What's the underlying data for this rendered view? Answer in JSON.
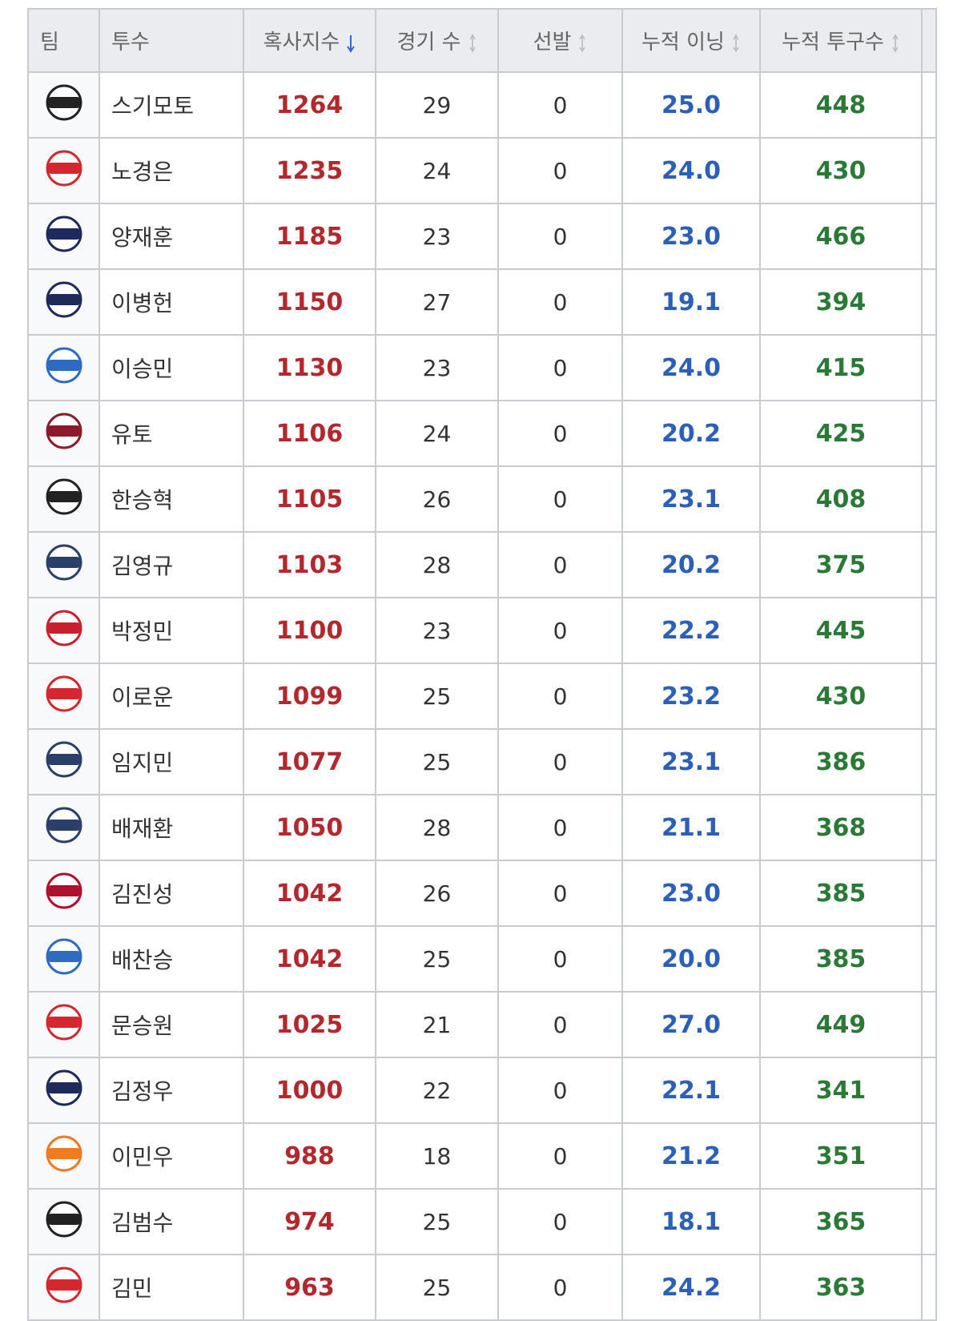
{
  "table": {
    "headers": [
      "팀",
      "투수",
      "혹사지수",
      "경기 수",
      "선발",
      "누적 이닝",
      "누적 투구수"
    ],
    "sorted_column": 2,
    "value_colors": [
      "#333333",
      "#b3282d",
      "#333333",
      "#333333",
      "#2c5fb8",
      "#2a7a36"
    ],
    "logo_colors": [
      "#222222",
      "#d6262f",
      "#1f2a5c",
      "#1f2a5c",
      "#2d6cc0",
      "#8b1a2b",
      "#222222",
      "#2a3f6a",
      "#c8202f",
      "#d6262f",
      "#2a3f6a",
      "#2a3f6a",
      "#b0102f",
      "#2d6cc0",
      "#d6262f",
      "#1f2a5c",
      "#f07a20",
      "#222222",
      "#d6262f"
    ],
    "rows": [
      [
        "스기모토",
        "1264",
        "29",
        "0",
        "25.0",
        "448"
      ],
      [
        "노경은",
        "1235",
        "24",
        "0",
        "24.0",
        "430"
      ],
      [
        "양재훈",
        "1185",
        "23",
        "0",
        "23.0",
        "466"
      ],
      [
        "이병헌",
        "1150",
        "27",
        "0",
        "19.1",
        "394"
      ],
      [
        "이승민",
        "1130",
        "23",
        "0",
        "24.0",
        "415"
      ],
      [
        "유토",
        "1106",
        "24",
        "0",
        "20.2",
        "425"
      ],
      [
        "한승혁",
        "1105",
        "26",
        "0",
        "23.1",
        "408"
      ],
      [
        "김영규",
        "1103",
        "28",
        "0",
        "20.2",
        "375"
      ],
      [
        "박정민",
        "1100",
        "23",
        "0",
        "22.2",
        "445"
      ],
      [
        "이로운",
        "1099",
        "25",
        "0",
        "23.2",
        "430"
      ],
      [
        "임지민",
        "1077",
        "25",
        "0",
        "23.1",
        "386"
      ],
      [
        "배재환",
        "1050",
        "28",
        "0",
        "21.1",
        "368"
      ],
      [
        "김진성",
        "1042",
        "26",
        "0",
        "23.0",
        "385"
      ],
      [
        "배찬승",
        "1042",
        "25",
        "0",
        "20.0",
        "385"
      ],
      [
        "문승원",
        "1025",
        "21",
        "0",
        "27.0",
        "449"
      ],
      [
        "김정우",
        "1000",
        "22",
        "0",
        "22.1",
        "341"
      ],
      [
        "이민우",
        "988",
        "18",
        "0",
        "21.2",
        "351"
      ],
      [
        "김범수",
        "974",
        "25",
        "0",
        "18.1",
        "365"
      ],
      [
        "김민",
        "963",
        "25",
        "0",
        "24.2",
        "363"
      ]
    ]
  }
}
